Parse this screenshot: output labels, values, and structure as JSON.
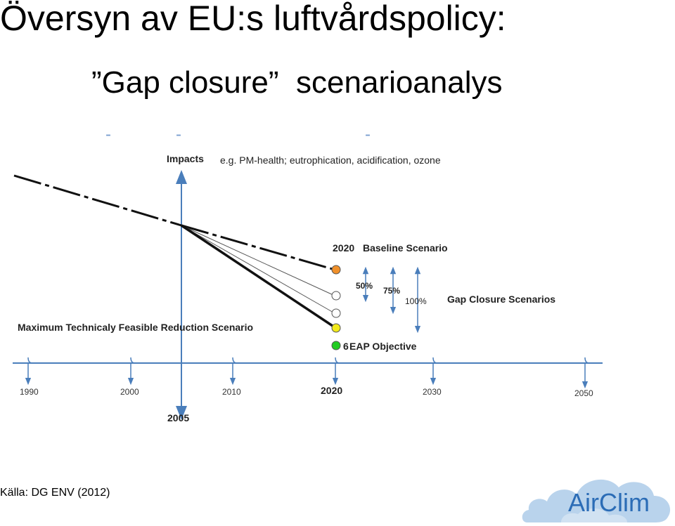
{
  "title": "Översyn av EU:s luftvårdspolicy:",
  "subtitle": {
    "quote_open": "”",
    "main": "Gap closure",
    "quote_close": "”",
    "rest": "scenarioanalys"
  },
  "dashes": [
    "-",
    "-",
    "-"
  ],
  "diagram": {
    "y_axis_label": "Impacts",
    "impacts_note": "e.g. PM-health; eutrophication, acidification, ozone",
    "baseline_label_prefix": "2020",
    "baseline_label": "Baseline Scenario",
    "gap_closure_label": "Gap Closure Scenarios",
    "mtfr_label": "Maximum Technicaly Feasible Reduction Scenario",
    "objective_label_prefix": "6",
    "objective_label": "EAP Objective",
    "percent_labels": [
      "50%",
      "75%",
      "100%"
    ],
    "years": [
      "1990",
      "2000",
      "2010",
      "2020",
      "2030",
      "2050"
    ],
    "base_year": "2005",
    "colors": {
      "axis": "#4a7ebb",
      "baseline_marker": "#f0902a",
      "mtfr_marker": "#f2ea1a",
      "objective_marker": "#22cc22",
      "gap_marker": "#ffffff"
    }
  },
  "source": "Källa: DG ENV (2012)",
  "logo": {
    "text": "AirClim",
    "cloud_color": "#b9d3ec",
    "text_color": "#2b6cb6"
  }
}
